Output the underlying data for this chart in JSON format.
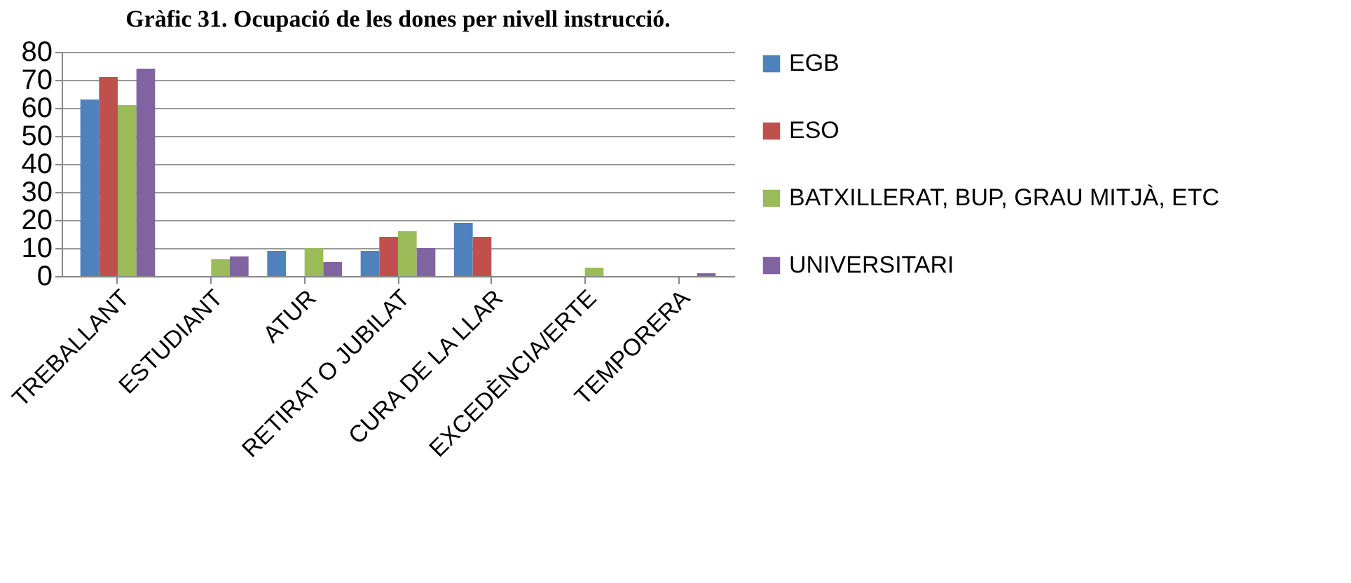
{
  "chart_data": {
    "type": "bar",
    "title": "Gràfic 31. Ocupació de les dones per nivell instrucció.",
    "categories": [
      "TREBALLANT",
      "ESTUDIANT",
      "ATUR",
      "RETIRAT O JUBILAT",
      "CURA DE LA LLAR",
      "EXCEDÈNCIA/ERTE",
      "TEMPORERA"
    ],
    "series": [
      {
        "name": "EGB",
        "color": "#4f81bd",
        "values": [
          63,
          0,
          9,
          9,
          19,
          0,
          0
        ]
      },
      {
        "name": "ESO",
        "color": "#c0504d",
        "values": [
          71,
          0,
          0,
          14,
          14,
          0,
          0
        ]
      },
      {
        "name": "BATXILLERAT, BUP, GRAU MITJÀ, ETC",
        "color": "#9bbb59",
        "values": [
          61,
          6,
          10,
          16,
          0,
          3,
          0
        ]
      },
      {
        "name": "UNIVERSITARI",
        "color": "#8064a2",
        "values": [
          74,
          7,
          5,
          10,
          0,
          0,
          1
        ]
      }
    ],
    "ylim": [
      0,
      80
    ],
    "yticks": [
      0,
      10,
      20,
      30,
      40,
      50,
      60,
      70,
      80
    ],
    "grid": "y",
    "legend": "right"
  }
}
